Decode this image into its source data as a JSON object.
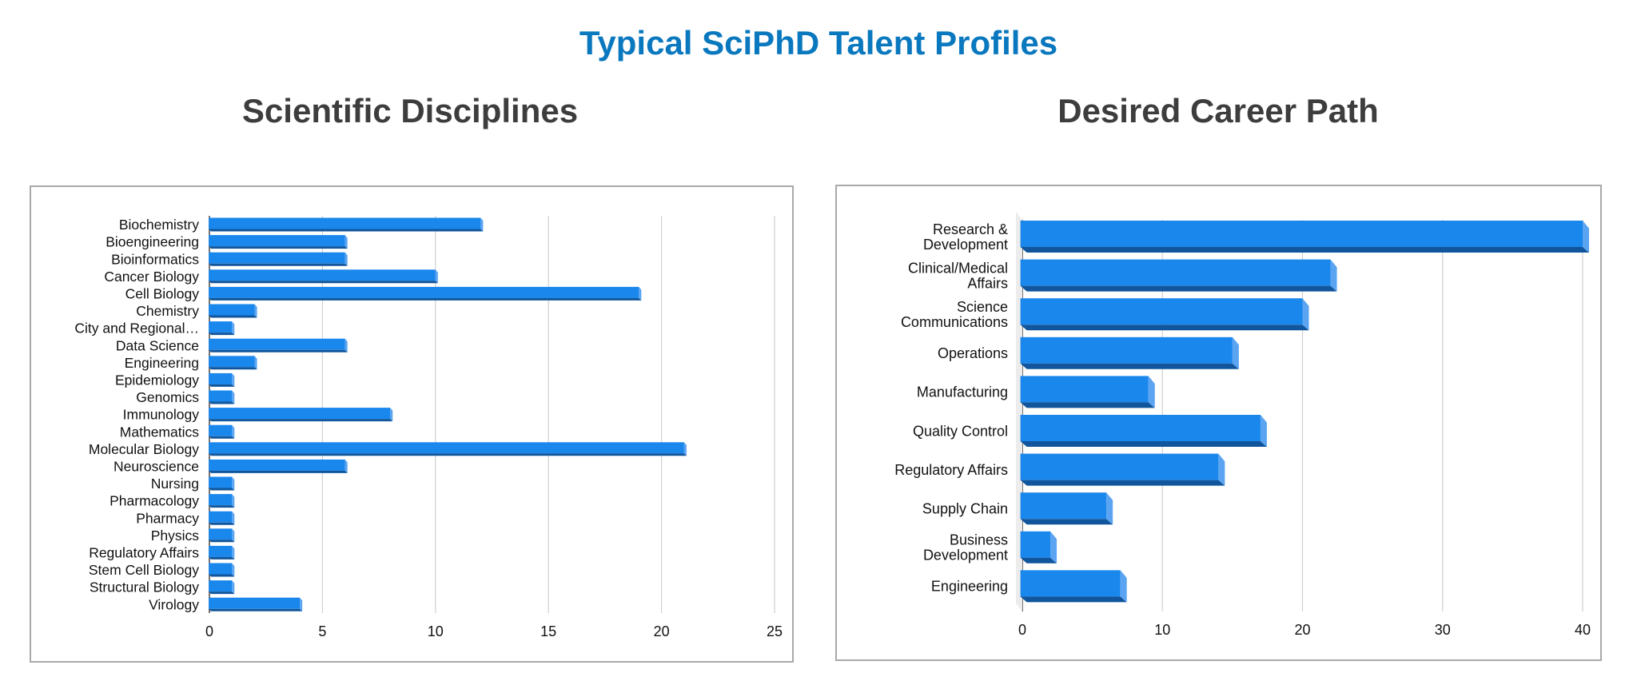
{
  "page": {
    "title": "Typical SciPhD Talent Profiles",
    "title_color": "#0a78be",
    "bar_color": "#1a87ec",
    "bar_shadow_color": "#11569c",
    "bar_side_color": "#5aa4f2"
  },
  "chart_data": [
    {
      "type": "bar",
      "orientation": "horizontal",
      "title": "Scientific Disciplines",
      "xlabel": "",
      "ylabel": "",
      "categories": [
        "Biochemistry",
        "Bioengineering",
        "Bioinformatics",
        "Cancer Biology",
        "Cell Biology",
        "Chemistry",
        "City and Regional…",
        "Data Science",
        "Engineering",
        "Epidemiology",
        "Genomics",
        "Immunology",
        "Mathematics",
        "Molecular Biology",
        "Neuroscience",
        "Nursing",
        "Pharmacology",
        "Pharmacy",
        "Physics",
        "Regulatory Affairs",
        "Stem Cell Biology",
        "Structural Biology",
        "Virology"
      ],
      "values": [
        12,
        6,
        6,
        10,
        19,
        2,
        1,
        6,
        2,
        1,
        1,
        8,
        1,
        21,
        6,
        1,
        1,
        1,
        1,
        1,
        1,
        1,
        4
      ],
      "xlim": [
        0,
        25
      ],
      "xticks": [
        0,
        5,
        10,
        15,
        20,
        25
      ],
      "grid": true,
      "legend": "none"
    },
    {
      "type": "bar",
      "orientation": "horizontal",
      "title": "Desired Career Path",
      "xlabel": "",
      "ylabel": "",
      "categories": [
        "Research & Development",
        "Clinical/Medical Affairs",
        "Science Communications",
        "Operations",
        "Manufacturing",
        "Quality Control",
        "Regulatory Affairs",
        "Supply Chain",
        "Business Development",
        "Engineering"
      ],
      "category_lines": [
        [
          "Research &",
          "Development"
        ],
        [
          "Clinical/Medical",
          "Affairs"
        ],
        [
          "Science",
          "Communications"
        ],
        [
          "Operations"
        ],
        [
          "Manufacturing"
        ],
        [
          "Quality Control"
        ],
        [
          "Regulatory Affairs"
        ],
        [
          "Supply Chain"
        ],
        [
          "Business",
          "Development"
        ],
        [
          "Engineering"
        ]
      ],
      "values": [
        40,
        22,
        20,
        15,
        9,
        17,
        14,
        6,
        2,
        7
      ],
      "xlim": [
        0,
        40
      ],
      "xticks": [
        0,
        10,
        20,
        30,
        40
      ],
      "grid": true,
      "legend": "none"
    }
  ]
}
